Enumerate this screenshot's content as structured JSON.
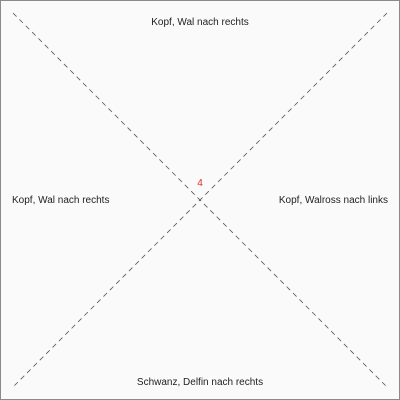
{
  "quadrants": {
    "top": "Kopf, Wal nach rechts",
    "left": "Kopf, Wal nach rechts",
    "right": "Kopf, Walross nach links",
    "bottom": "Schwanz, Delfin nach rechts"
  },
  "center": {
    "number": "4",
    "color": "#e8272a"
  },
  "colors": {
    "line": "#555555",
    "background": "#fafafa",
    "border": "#8a8a8a"
  }
}
